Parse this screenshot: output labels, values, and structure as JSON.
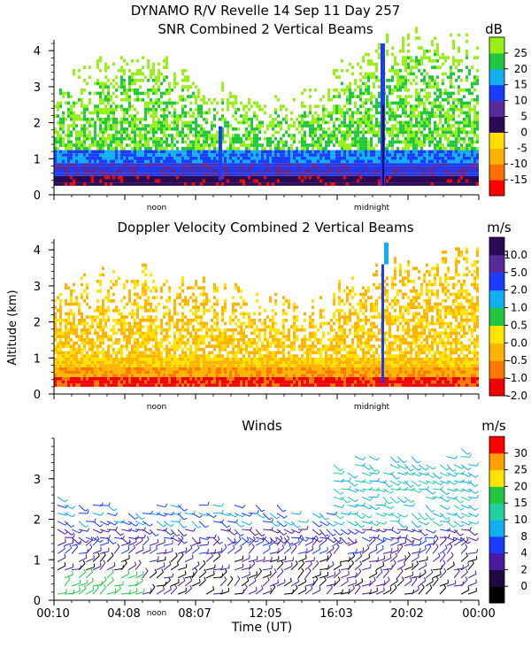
{
  "header": {
    "line1": "DYNAMO R/V Revelle  14 Sep 11 Day 257"
  },
  "chart_data": [
    {
      "type": "heatmap",
      "title": "SNR Combined 2 Vertical Beams",
      "ylabel": "",
      "ylim": [
        0,
        4.3
      ],
      "y_ticks": [
        "0",
        "1",
        "2",
        "3",
        "4"
      ],
      "x_markers": [
        "noon",
        "midnight"
      ],
      "colorbar": {
        "unit": "dB",
        "labels": [
          "25",
          "20",
          "15",
          "10",
          "5",
          "0",
          "-5",
          "-10",
          "-15"
        ],
        "colors": [
          "#ff0000",
          "#ff7000",
          "#ffb000",
          "#ffe000",
          "#2a0a55",
          "#5a2a9c",
          "#1a3cff",
          "#10b0f0",
          "#20c840",
          "#98f018"
        ]
      }
    },
    {
      "type": "heatmap",
      "title": "Doppler Velocity Combined 2 Vertical Beams",
      "ylabel": "Altitude (km)",
      "ylim": [
        0,
        4.3
      ],
      "y_ticks": [
        "0",
        "1",
        "2",
        "3",
        "4"
      ],
      "x_markers": [
        "noon",
        "midnight"
      ],
      "colorbar": {
        "unit": "m/s",
        "labels": [
          "10.0",
          "5.0",
          "2.0",
          "1.0",
          "0.5",
          "0.0",
          "-0.5",
          "-1.0",
          "-2.0"
        ],
        "colors": [
          "#f00000",
          "#ff7800",
          "#ffb400",
          "#ffe400",
          "#20c840",
          "#10b0f0",
          "#1a3cff",
          "#5a2a9c",
          "#2a0a55"
        ]
      }
    },
    {
      "type": "scatter",
      "title": "Winds",
      "ylabel": "",
      "ylim": [
        0,
        4
      ],
      "y_ticks": [
        "0",
        "1",
        "2",
        "3"
      ],
      "x_markers": [
        "noon"
      ],
      "xlabel": "Time (UT)",
      "x_ticks": [
        "00:10",
        "04:08",
        "08:07",
        "12:05",
        "16:03",
        "20:02",
        "00:00"
      ],
      "colorbar": {
        "unit": "m/s",
        "labels": [
          "30",
          "25",
          "20",
          "15",
          "10",
          "8",
          "4",
          "2",
          "0"
        ],
        "colors": [
          "#000000",
          "#1c0a40",
          "#4a1aa0",
          "#1a3cff",
          "#10b0f0",
          "#20d0a0",
          "#20c840",
          "#ffe400",
          "#ffa000",
          "#ff0000"
        ]
      }
    }
  ]
}
